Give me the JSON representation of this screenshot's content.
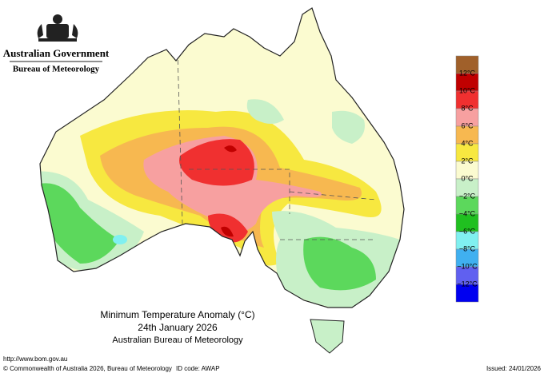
{
  "header": {
    "government": "Australian Government",
    "bureau": "Bureau of Meteorology"
  },
  "title": {
    "main": "Minimum Temperature Anomaly (°C)",
    "date": "24th January 2026",
    "source": "Australian Bureau of Meteorology"
  },
  "legend": {
    "colors": [
      "#a0602a",
      "#c00000",
      "#f03030",
      "#f7a0a0",
      "#f7b850",
      "#f7e840",
      "#fbfbd0",
      "#c8f0c8",
      "#5cd85c",
      "#20c020",
      "#80f0f0",
      "#40b0f0",
      "#6060f0",
      "#0000f0"
    ],
    "labels": [
      "12°C",
      "10°C",
      "8°C",
      "6°C",
      "4°C",
      "2°C",
      "0°C",
      "−2°C",
      "−4°C",
      "−6°C",
      "−8°C",
      "−10°C",
      "−12°C"
    ]
  },
  "footer": {
    "url": "http://www.bom.gov.au",
    "copyright": "© Commonwealth of Australia 2026, Bureau of Meteorology",
    "id_code": "ID code: AWAP",
    "issued": "Issued: 24/01/2026"
  }
}
